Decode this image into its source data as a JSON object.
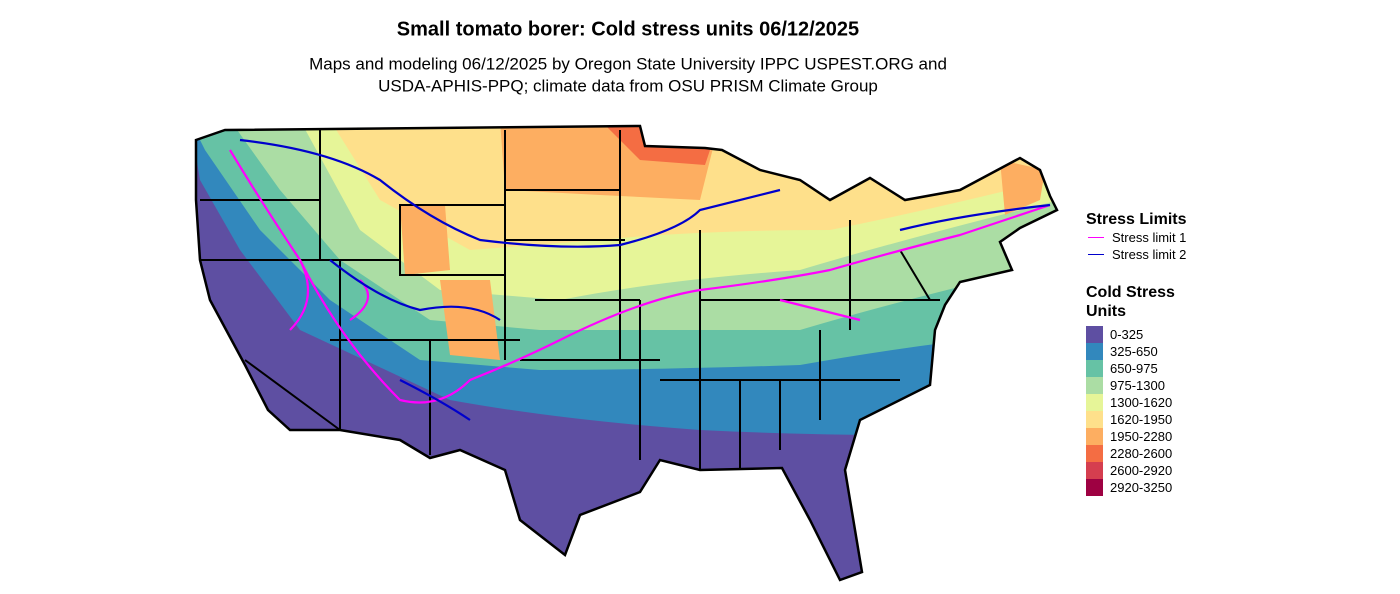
{
  "header": {
    "title": "Small tomato borer: Cold stress units 06/12/2025",
    "subtitle_lines": [
      "Maps and modeling 06/12/2025 by Oregon State University IPPC USPEST.ORG and",
      "USDA-APHIS-PPQ; climate data from OSU PRISM Climate Group"
    ]
  },
  "legend": {
    "stress_limits": {
      "title": "Stress Limits",
      "items": [
        {
          "label": "Stress limit 1",
          "color": "#ff00ff"
        },
        {
          "label": "Stress limit 2",
          "color": "#0000cc"
        }
      ]
    },
    "cold_stress_units": {
      "title": "Cold Stress Units",
      "items": [
        {
          "label": "0-325",
          "color": "#5e4fa2"
        },
        {
          "label": "325-650",
          "color": "#3288bd"
        },
        {
          "label": "650-975",
          "color": "#66c2a5"
        },
        {
          "label": "975-1300",
          "color": "#abdda4"
        },
        {
          "label": "1300-1620",
          "color": "#e6f598"
        },
        {
          "label": "1620-1950",
          "color": "#fee08b"
        },
        {
          "label": "1950-2280",
          "color": "#fdae61"
        },
        {
          "label": "2280-2600",
          "color": "#f46d43"
        },
        {
          "label": "2600-2920",
          "color": "#d53e4f"
        },
        {
          "label": "2920-3250",
          "color": "#9e0142"
        }
      ]
    }
  }
}
